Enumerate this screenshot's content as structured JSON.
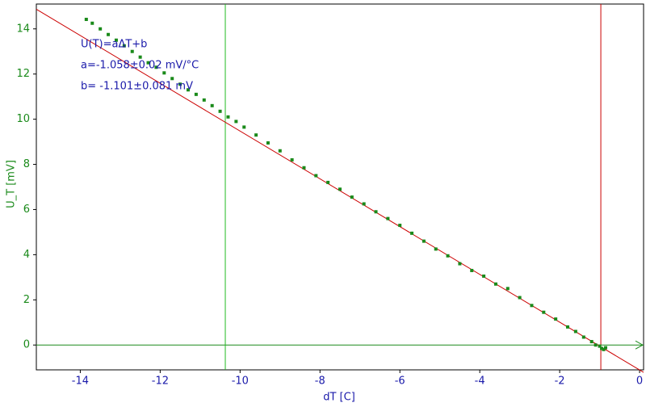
{
  "chart_data": {
    "type": "scatter",
    "x_label": "dT [C]",
    "y_label": "U_T [mV]",
    "annotations": [
      "U(T)=aΔT+b",
      "a=-1.058±0.02 mV/°C",
      "b= -1.101±0.081 mV"
    ],
    "xlim": [
      -15.1,
      0.1
    ],
    "ylim": [
      -1.1,
      15.1
    ],
    "xticks": [
      -14,
      -12,
      -10,
      -8,
      -6,
      -4,
      -2,
      0
    ],
    "yticks": [
      0,
      2,
      4,
      6,
      8,
      10,
      12,
      14
    ],
    "series": [
      {
        "color": "#1a8a1a",
        "x": [
          -13.85,
          -13.7,
          -13.5,
          -13.3,
          -13.1,
          -12.9,
          -12.7,
          -12.5,
          -12.3,
          -12.1,
          -11.9,
          -11.7,
          -11.5,
          -11.3,
          -11.1,
          -10.9,
          -10.7,
          -10.5,
          -10.3,
          -10.1,
          -9.9,
          -9.6,
          -9.3,
          -9.0,
          -8.7,
          -8.4,
          -8.1,
          -7.8,
          -7.5,
          -7.2,
          -6.9,
          -6.6,
          -6.3,
          -6.0,
          -5.7,
          -5.4,
          -5.1,
          -4.8,
          -4.5,
          -4.2,
          -3.9,
          -3.6,
          -3.3,
          -3.0,
          -2.7,
          -2.4,
          -2.1,
          -1.8,
          -1.6,
          -1.4,
          -1.2,
          -1.1,
          -1.0,
          -0.95,
          -0.9,
          -0.85
        ],
        "values": [
          14.42,
          14.25,
          14.0,
          13.75,
          13.5,
          13.25,
          13.0,
          12.75,
          12.5,
          12.3,
          12.05,
          11.8,
          11.55,
          11.3,
          11.1,
          10.85,
          10.6,
          10.35,
          10.1,
          9.9,
          9.65,
          9.3,
          8.95,
          8.6,
          8.2,
          7.85,
          7.5,
          7.2,
          6.9,
          6.55,
          6.25,
          5.9,
          5.6,
          5.3,
          4.95,
          4.6,
          4.25,
          3.95,
          3.6,
          3.3,
          3.05,
          2.7,
          2.5,
          2.1,
          1.75,
          1.45,
          1.15,
          0.8,
          0.6,
          0.35,
          0.15,
          0.0,
          -0.05,
          -0.15,
          -0.2,
          -0.12
        ]
      }
    ],
    "fit_line": {
      "color": "#cc0000",
      "x": [
        -15.1,
        0.1
      ],
      "values": [
        14.87,
        -1.21
      ]
    },
    "vertical_lines": [
      {
        "x": -10.37,
        "color": "#22bb22"
      },
      {
        "x": -0.97,
        "color": "#cc0000"
      }
    ],
    "zero_axis_color": "#1a8a1a",
    "x_tick_color": "#1a1aaa",
    "y_tick_color": "#1a8a1a",
    "annotation_color": "#1a1aaa"
  }
}
